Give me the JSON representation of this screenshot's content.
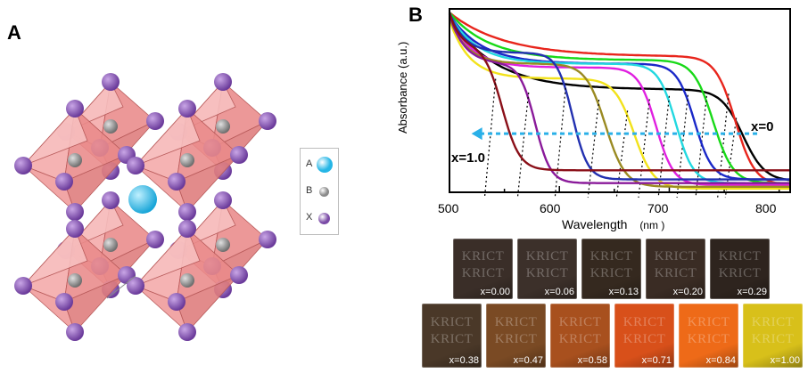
{
  "panels": {
    "a_label": "A",
    "b_label": "B"
  },
  "legend": [
    {
      "label": "A",
      "color": "#26b6e6"
    },
    {
      "label": "B",
      "color": "#8a8a8a"
    },
    {
      "label": "X",
      "color": "#7a4aa6"
    }
  ],
  "chart_data": {
    "type": "line",
    "title": "",
    "xlabel": "Wavelength",
    "xlabel_unit": "(nm )",
    "ylabel": "Absorbance (a.u.)",
    "xlim": [
      500,
      810
    ],
    "ylim": [
      0,
      1
    ],
    "xticks": [
      500,
      600,
      700,
      800
    ],
    "annotations": {
      "top": "x=0",
      "bottom": "x=1.0"
    },
    "series": [
      {
        "name": "x=0.00",
        "color": "#000000",
        "edge": 767,
        "width": 10,
        "start": 0.96,
        "plateau": 0.56,
        "drop": 590,
        "tail": 0.06
      },
      {
        "name": "x=0.06",
        "color": "#e8251c",
        "edge": 760,
        "width": 9,
        "start": 0.98,
        "plateau": 0.74,
        "drop": 610,
        "tail": 0.04
      },
      {
        "name": "x=0.13",
        "color": "#18d918",
        "edge": 740,
        "width": 9,
        "start": 0.98,
        "plateau": 0.72,
        "drop": 580,
        "tail": 0.05
      },
      {
        "name": "x=0.20",
        "color": "#1a28c8",
        "edge": 723,
        "width": 8,
        "start": 0.97,
        "plateau": 0.7,
        "drop": 565,
        "tail": 0.07
      },
      {
        "name": "x=0.29",
        "color": "#22d8e0",
        "edge": 706,
        "width": 8,
        "start": 0.97,
        "plateau": 0.7,
        "drop": 555,
        "tail": 0.05
      },
      {
        "name": "x=0.38",
        "color": "#e020e0",
        "edge": 688,
        "width": 8,
        "start": 0.96,
        "plateau": 0.68,
        "drop": 545,
        "tail": 0.04
      },
      {
        "name": "x=0.47",
        "color": "#f2e21a",
        "edge": 668,
        "width": 9,
        "start": 0.94,
        "plateau": 0.62,
        "drop": 540,
        "tail": 0.02
      },
      {
        "name": "x=0.58",
        "color": "#9a8a22",
        "edge": 642,
        "width": 9,
        "start": 0.95,
        "plateau": 0.7,
        "drop": 535,
        "tail": 0.03
      },
      {
        "name": "x=0.71",
        "color": "#2230b0",
        "edge": 612,
        "width": 7,
        "start": 0.98,
        "plateau": 0.76,
        "drop": 530,
        "tail": 0.07
      },
      {
        "name": "x=0.84",
        "color": "#8a1a9a",
        "edge": 578,
        "width": 7,
        "start": 0.97,
        "plateau": 0.7,
        "drop": 530,
        "tail": 0.05
      },
      {
        "name": "x=1.00",
        "color": "#8a0f18",
        "edge": 548,
        "width": 8,
        "start": 0.98,
        "plateau": 0.8,
        "drop": 520,
        "tail": 0.12
      }
    ]
  },
  "films": {
    "watermark": "KRICT",
    "row1": [
      {
        "label": "x=0.00",
        "color": "#3a2e28"
      },
      {
        "label": "x=0.06",
        "color": "#3c302a"
      },
      {
        "label": "x=0.13",
        "color": "#35291f"
      },
      {
        "label": "x=0.20",
        "color": "#3a2c24"
      },
      {
        "label": "x=0.29",
        "color": "#2e241e"
      }
    ],
    "row2": [
      {
        "label": "x=0.38",
        "color": "#4a3828"
      },
      {
        "label": "x=0.47",
        "color": "#7a4a24"
      },
      {
        "label": "x=0.58",
        "color": "#a8501e"
      },
      {
        "label": "x=0.71",
        "color": "#d8501a"
      },
      {
        "label": "x=0.84",
        "color": "#ee6a18"
      },
      {
        "label": "x=1.00",
        "color": "#d8c01a"
      }
    ]
  }
}
